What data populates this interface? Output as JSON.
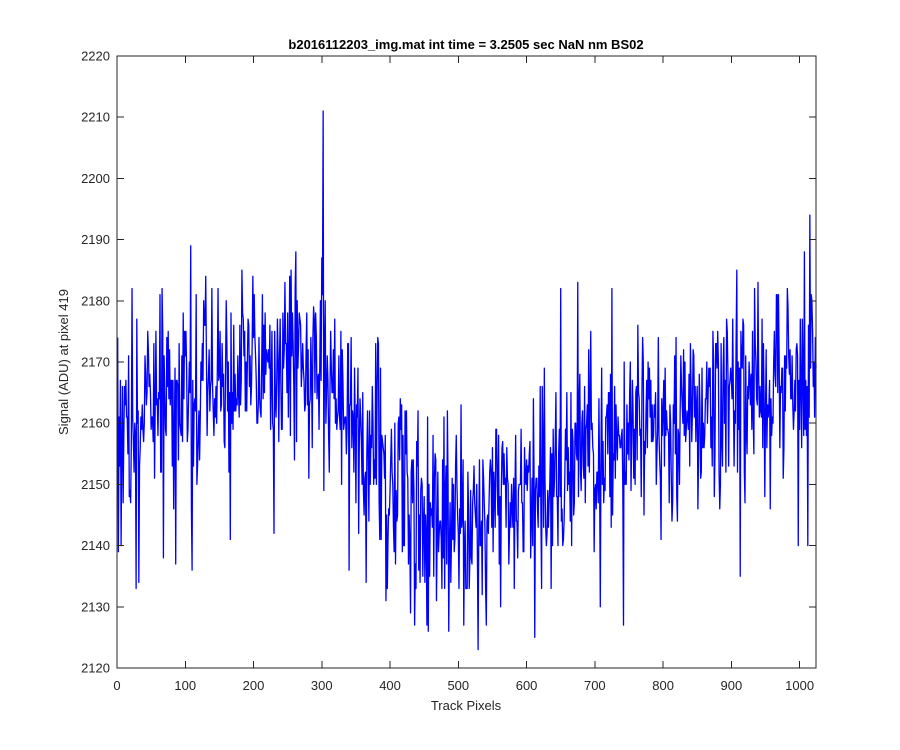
{
  "chart_data": {
    "type": "line",
    "title": "b2016112203_img.mat int time = 3.2505 sec  NaN nm BS02",
    "xlabel": "Track Pixels",
    "ylabel": "Signal (ADU) at pixel 419",
    "xlim": [
      0,
      1024
    ],
    "ylim": [
      2120,
      2220
    ],
    "xticks": [
      0,
      100,
      200,
      300,
      400,
      500,
      600,
      700,
      800,
      900,
      1000
    ],
    "yticks": [
      2120,
      2130,
      2140,
      2150,
      2160,
      2170,
      2180,
      2190,
      2200,
      2210,
      2220
    ],
    "grid": false,
    "series": [
      {
        "name": "signal",
        "color": "#0000ff",
        "x_start": 1,
        "x_step": 1,
        "anchors": [
          [
            0,
            2158
          ],
          [
            60,
            2164
          ],
          [
            120,
            2166
          ],
          [
            180,
            2168
          ],
          [
            240,
            2169
          ],
          [
            300,
            2170
          ],
          [
            330,
            2164
          ],
          [
            360,
            2158
          ],
          [
            400,
            2152
          ],
          [
            440,
            2147
          ],
          [
            480,
            2145
          ],
          [
            520,
            2144
          ],
          [
            560,
            2147
          ],
          [
            600,
            2150
          ],
          [
            640,
            2152
          ],
          [
            680,
            2155
          ],
          [
            720,
            2157
          ],
          [
            760,
            2159
          ],
          [
            800,
            2161
          ],
          [
            840,
            2162
          ],
          [
            880,
            2163
          ],
          [
            920,
            2165
          ],
          [
            960,
            2167
          ],
          [
            1000,
            2171
          ],
          [
            1024,
            2172
          ]
        ],
        "spread": 8,
        "seed": 20161122,
        "spikes": [
          [
            2,
            2139
          ],
          [
            8,
            2166
          ],
          [
            22,
            2182
          ],
          [
            28,
            2133
          ],
          [
            32,
            2134
          ],
          [
            66,
            2182
          ],
          [
            68,
            2138
          ],
          [
            86,
            2137
          ],
          [
            108,
            2189
          ],
          [
            110,
            2136
          ],
          [
            166,
            2141
          ],
          [
            183,
            2185
          ],
          [
            230,
            2142
          ],
          [
            255,
            2185
          ],
          [
            262,
            2188
          ],
          [
            300,
            2187
          ],
          [
            301,
            2181
          ],
          [
            302,
            2211
          ],
          [
            303,
            2149
          ],
          [
            340,
            2136
          ],
          [
            365,
            2134
          ],
          [
            394,
            2131
          ],
          [
            430,
            2129
          ],
          [
            436,
            2127
          ],
          [
            444,
            2134
          ],
          [
            448,
            2135
          ],
          [
            454,
            2127
          ],
          [
            456,
            2126
          ],
          [
            458,
            2135
          ],
          [
            468,
            2131
          ],
          [
            486,
            2126
          ],
          [
            508,
            2127
          ],
          [
            529,
            2123
          ],
          [
            535,
            2132
          ],
          [
            562,
            2130
          ],
          [
            612,
            2125
          ],
          [
            650,
            2182
          ],
          [
            675,
            2183
          ],
          [
            708,
            2130
          ],
          [
            725,
            2182
          ],
          [
            742,
            2127
          ],
          [
            913,
            2135
          ],
          [
            998,
            2140
          ],
          [
            1005,
            2168
          ],
          [
            1012,
            2140
          ],
          [
            1015,
            2194
          ],
          [
            1017,
            2181
          ]
        ]
      }
    ]
  }
}
